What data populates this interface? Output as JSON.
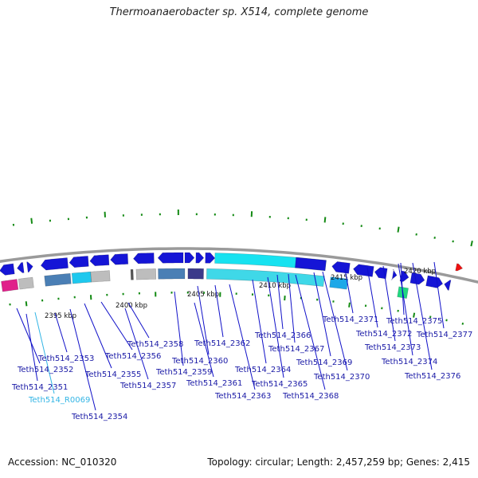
{
  "title": "Thermoanaerobacter sp. X514, complete genome",
  "accession_label": "Accession: NC_010320",
  "summary_label": "Topology: circular; Length: 2,457,259 bp; Genes: 2,415",
  "colors": {
    "gene_blue": "#1515d6",
    "gene_cyan": "#17e2f0",
    "steel_blue": "#4a7fb5",
    "slate": "#3b3a8a",
    "gray": "#bdbdbd",
    "magenta": "#e0208a",
    "green": "#20d880",
    "red": "#ee1111",
    "tick_green": "#138a13",
    "label_blue": "#1a1aa6",
    "rna_blue": "#33b5e5"
  },
  "scale_labels": [
    {
      "id": "kbp-2395",
      "text": "2395 kbp"
    },
    {
      "id": "kbp-2400",
      "text": "2400 kbp"
    },
    {
      "id": "kbp-2405",
      "text": "2405 kbp"
    },
    {
      "id": "kbp-2410",
      "text": "2410 kbp"
    },
    {
      "id": "kbp-2415",
      "text": "2415 kbp"
    },
    {
      "id": "kbp-2420",
      "text": "2420 kbp"
    }
  ],
  "gene_labels": [
    {
      "id": "Teth514_2351",
      "text": "Teth514_2351"
    },
    {
      "id": "Teth514_R0069",
      "text": "Teth514_R0069"
    },
    {
      "id": "Teth514_2352",
      "text": "Teth514_2352"
    },
    {
      "id": "Teth514_2353",
      "text": "Teth514_2353"
    },
    {
      "id": "Teth514_2354",
      "text": "Teth514_2354"
    },
    {
      "id": "Teth514_2355",
      "text": "Teth514_2355"
    },
    {
      "id": "Teth514_2356",
      "text": "Teth514_2356"
    },
    {
      "id": "Teth514_2357",
      "text": "Teth514_2357"
    },
    {
      "id": "Teth514_2358",
      "text": "Teth514_2358"
    },
    {
      "id": "Teth514_2359",
      "text": "Teth514_2359"
    },
    {
      "id": "Teth514_2360",
      "text": "Teth514_2360"
    },
    {
      "id": "Teth514_2361",
      "text": "Teth514_2361"
    },
    {
      "id": "Teth514_2362",
      "text": "Teth514_2362"
    },
    {
      "id": "Teth514_2363",
      "text": "Teth514_2363"
    },
    {
      "id": "Teth514_2364",
      "text": "Teth514_2364"
    },
    {
      "id": "Teth514_2365",
      "text": "Teth514_2365"
    },
    {
      "id": "Teth514_2366",
      "text": "Teth514_2366"
    },
    {
      "id": "Teth514_2367",
      "text": "Teth514_2367"
    },
    {
      "id": "Teth514_2368",
      "text": "Teth514_2368"
    },
    {
      "id": "Teth514_2369",
      "text": "Teth514_2369"
    },
    {
      "id": "Teth514_2370",
      "text": "Teth514_2370"
    },
    {
      "id": "Teth514_2371",
      "text": "Teth514_2371"
    },
    {
      "id": "Teth514_2372",
      "text": "Teth514_2372"
    },
    {
      "id": "Teth514_2373",
      "text": "Teth514_2373"
    },
    {
      "id": "Teth514_2374",
      "text": "Teth514_2374"
    },
    {
      "id": "Teth514_2375",
      "text": "Teth514_2375"
    },
    {
      "id": "Teth514_2376",
      "text": "Teth514_2376"
    },
    {
      "id": "Teth514_2377",
      "text": "Teth514_2377"
    }
  ]
}
